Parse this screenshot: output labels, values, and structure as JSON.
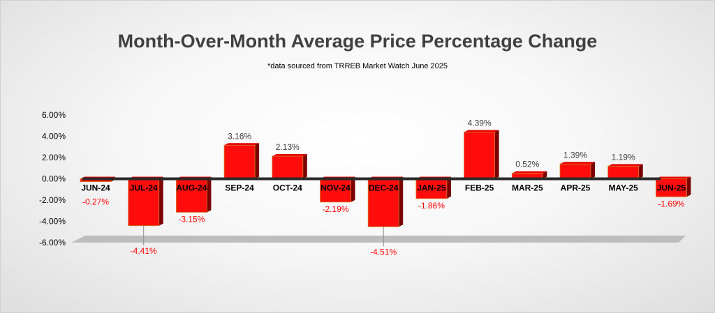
{
  "colors": {
    "bar_front": "#ff0d0d",
    "bar_side": "#7a0000",
    "bar_top": "#e60000",
    "bar_edge": "#d08020",
    "negative_label": "#ff0000",
    "positive_label": "#404040",
    "floor": "#bdbdbd"
  },
  "chart_data": {
    "type": "bar",
    "title": "Month-Over-Month Average Price Percentage Change",
    "subtitle": "*data sourced from TRREB Market Watch June 2025",
    "xlabel": "",
    "ylabel": "",
    "ylim": [
      -6,
      6
    ],
    "yticks": [
      6,
      4,
      2,
      0,
      -2,
      -4,
      -6
    ],
    "ytick_labels": [
      "6.00%",
      "4.00%",
      "2.00%",
      "0.00%",
      "-2.00%",
      "-4.00%",
      "-6.00%"
    ],
    "categories": [
      "JUN-24",
      "JUL-24",
      "AUG-24",
      "SEP-24",
      "OCT-24",
      "NOV-24",
      "DEC-24",
      "JAN-25",
      "FEB-25",
      "MAR-25",
      "APR-25",
      "MAY-25",
      "JUN-25"
    ],
    "values": [
      -0.27,
      -4.41,
      -3.15,
      3.16,
      2.13,
      -2.19,
      -4.51,
      -1.86,
      4.39,
      0.52,
      1.39,
      1.19,
      -1.69
    ],
    "data_labels": [
      "-0.27%",
      "-4.41%",
      "-3.15%",
      "3.16%",
      "2.13%",
      "-2.19%",
      "-4.51%",
      "-1.86%",
      "4.39%",
      "0.52%",
      "1.39%",
      "1.19%",
      "-1.69%"
    ],
    "grid": false,
    "legend": "none"
  }
}
